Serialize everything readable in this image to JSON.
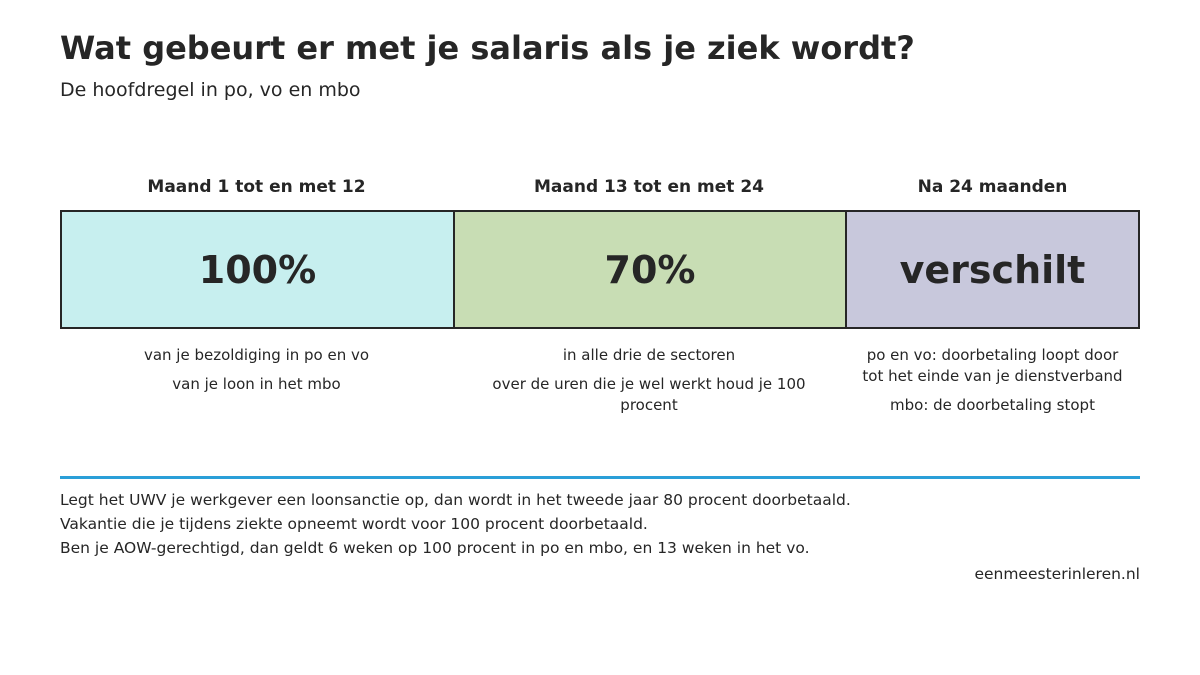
{
  "title": "Wat gebeurt er met je salaris als je ziek wordt?",
  "subtitle": "De hoofdregel in po, vo en mbo",
  "border_color": "#262626",
  "accent_color": "#2a9fd8",
  "periods": [
    {
      "header": "Maand 1 tot en met 12",
      "value": "100%",
      "color": "#c7efef",
      "notes": [
        "van je bezoldiging in po en vo",
        "van je loon in het mbo"
      ]
    },
    {
      "header": "Maand 13 tot en met 24",
      "value": "70%",
      "color": "#c8ddb4",
      "notes": [
        "in alle drie de sectoren",
        "over de uren die je wel werkt houd je 100 procent"
      ]
    },
    {
      "header": "Na 24 maanden",
      "value": "verschilt",
      "color": "#c8c8dc",
      "notes": [
        "po en vo: doorbetaling loopt door tot het einde van je dienstverband",
        "mbo: de doorbetaling stopt"
      ]
    }
  ],
  "footer_notes": [
    "Legt het UWV je werkgever een loonsanctie op, dan wordt in het tweede jaar 80 procent doorbetaald.",
    "Vakantie die je tijdens ziekte opneemt wordt voor 100 procent doorbetaald.",
    "Ben je AOW-gerechtigd, dan geldt 6 weken op 100 procent in po en mbo, en 13 weken in het vo."
  ],
  "source": "eenmeesterinleren.nl"
}
